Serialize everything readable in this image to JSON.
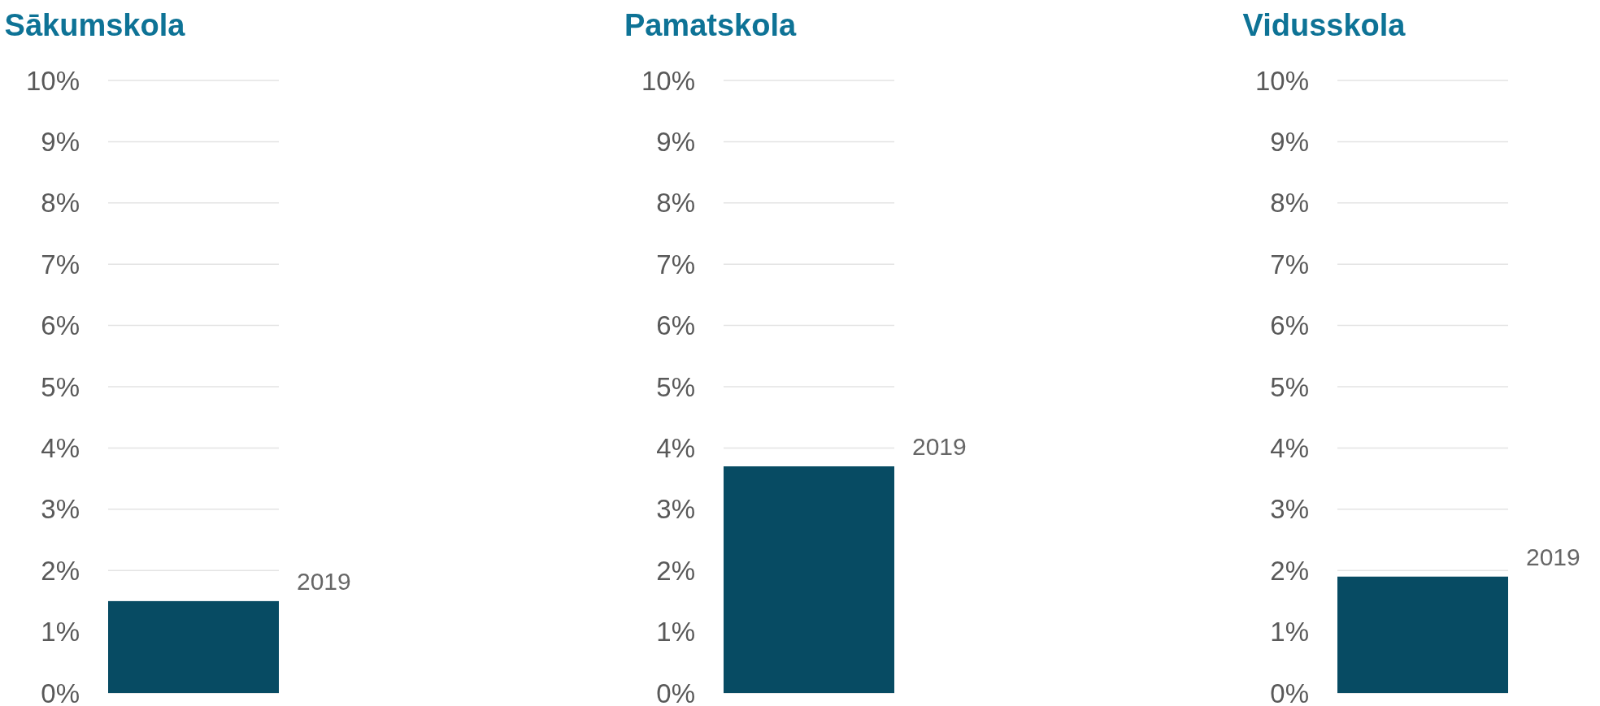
{
  "chart_data": [
    {
      "type": "bar",
      "title": "Sākumskola",
      "categories": [
        null
      ],
      "series": [
        {
          "name": "2019",
          "color": "#074b63",
          "values": [
            1.5
          ]
        }
      ],
      "ylim": [
        0,
        10
      ],
      "yticks": [
        {
          "value": 0,
          "label": "0%"
        },
        {
          "value": 1,
          "label": "1%"
        },
        {
          "value": 2,
          "label": "2%"
        },
        {
          "value": 3,
          "label": "3%"
        },
        {
          "value": 4,
          "label": "4%"
        },
        {
          "value": 5,
          "label": "5%"
        },
        {
          "value": 6,
          "label": "6%"
        },
        {
          "value": 7,
          "label": "7%"
        },
        {
          "value": 8,
          "label": "8%"
        },
        {
          "value": 9,
          "label": "9%"
        },
        {
          "value": 10,
          "label": "10%"
        }
      ],
      "grid": "y",
      "legend": false
    },
    {
      "type": "bar",
      "title": "Pamatskola",
      "categories": [
        null
      ],
      "series": [
        {
          "name": "2019",
          "color": "#074b63",
          "values": [
            3.7
          ]
        }
      ],
      "ylim": [
        0,
        10
      ],
      "yticks": [
        {
          "value": 0,
          "label": "0%"
        },
        {
          "value": 1,
          "label": "1%"
        },
        {
          "value": 2,
          "label": "2%"
        },
        {
          "value": 3,
          "label": "3%"
        },
        {
          "value": 4,
          "label": "4%"
        },
        {
          "value": 5,
          "label": "5%"
        },
        {
          "value": 6,
          "label": "6%"
        },
        {
          "value": 7,
          "label": "7%"
        },
        {
          "value": 8,
          "label": "8%"
        },
        {
          "value": 9,
          "label": "9%"
        },
        {
          "value": 10,
          "label": "10%"
        }
      ],
      "grid": "y",
      "legend": false
    },
    {
      "type": "bar",
      "title": "Vidusskola",
      "categories": [
        null
      ],
      "series": [
        {
          "name": "2019",
          "color": "#074b63",
          "values": [
            1.9
          ]
        }
      ],
      "ylim": [
        0,
        10
      ],
      "yticks": [
        {
          "value": 0,
          "label": "0%"
        },
        {
          "value": 1,
          "label": "1%"
        },
        {
          "value": 2,
          "label": "2%"
        },
        {
          "value": 3,
          "label": "3%"
        },
        {
          "value": 4,
          "label": "4%"
        },
        {
          "value": 5,
          "label": "5%"
        },
        {
          "value": 6,
          "label": "6%"
        },
        {
          "value": 7,
          "label": "7%"
        },
        {
          "value": 8,
          "label": "8%"
        },
        {
          "value": 9,
          "label": "9%"
        },
        {
          "value": 10,
          "label": "10%"
        }
      ],
      "grid": "y",
      "legend": false
    }
  ]
}
